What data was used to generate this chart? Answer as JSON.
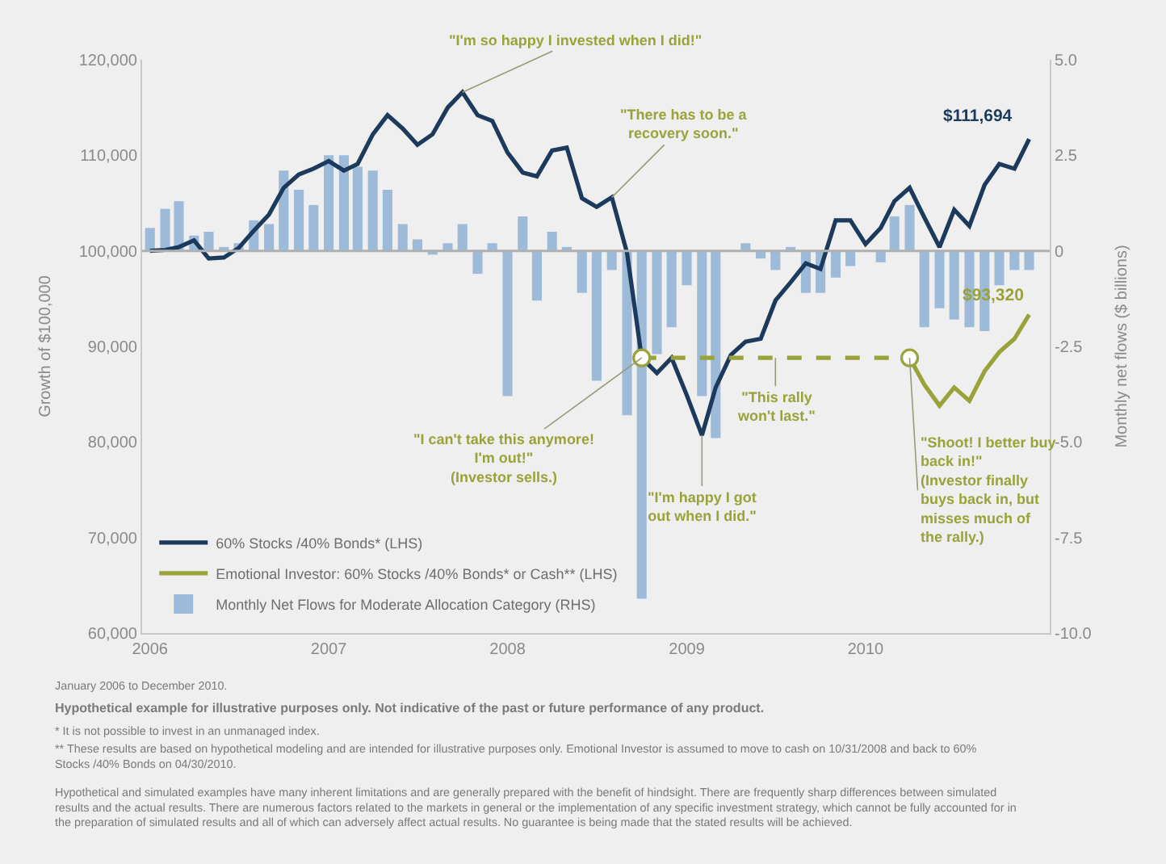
{
  "chart_data": {
    "type": "line",
    "x": [
      "2006-01",
      "2006-02",
      "2006-03",
      "2006-04",
      "2006-05",
      "2006-06",
      "2006-07",
      "2006-08",
      "2006-09",
      "2006-10",
      "2006-11",
      "2006-12",
      "2007-01",
      "2007-02",
      "2007-03",
      "2007-04",
      "2007-05",
      "2007-06",
      "2007-07",
      "2007-08",
      "2007-09",
      "2007-10",
      "2007-11",
      "2007-12",
      "2008-01",
      "2008-02",
      "2008-03",
      "2008-04",
      "2008-05",
      "2008-06",
      "2008-07",
      "2008-08",
      "2008-09",
      "2008-10",
      "2008-11",
      "2008-12",
      "2009-01",
      "2009-02",
      "2009-03",
      "2009-04",
      "2009-05",
      "2009-06",
      "2009-07",
      "2009-08",
      "2009-09",
      "2009-10",
      "2009-11",
      "2009-12",
      "2010-01",
      "2010-02",
      "2010-03",
      "2010-04",
      "2010-05",
      "2010-06",
      "2010-07",
      "2010-08",
      "2010-09",
      "2010-10",
      "2010-11",
      "2010-12"
    ],
    "series": [
      {
        "name": "Monthly Net Flows for Moderate Allocation Category (RHS)",
        "type": "bar",
        "axis": "y2",
        "color": "#9dbbd9",
        "values": [
          0.6,
          1.1,
          1.3,
          0.4,
          0.5,
          0.1,
          0.2,
          0.8,
          0.7,
          2.1,
          1.6,
          1.2,
          2.5,
          2.5,
          2.2,
          2.1,
          1.6,
          0.7,
          0.3,
          -0.1,
          0.2,
          0.7,
          -0.6,
          0.2,
          -3.8,
          0.9,
          -1.3,
          0.5,
          0.1,
          -1.1,
          -3.4,
          -0.5,
          -4.3,
          -9.1,
          -2.7,
          -2.0,
          -0.9,
          -3.8,
          -4.9,
          0,
          0.2,
          -0.2,
          -0.5,
          0.1,
          -1.1,
          -1.1,
          -0.7,
          -0.4,
          0,
          -0.3,
          0.9,
          1.2,
          -2.0,
          -1.5,
          -1.8,
          -2.0,
          -2.1,
          -0.9,
          -0.5,
          -0.5
        ]
      },
      {
        "name": "60% Stocks /40% Bonds* (LHS)",
        "color": "#1b3a5c",
        "values": [
          100000,
          100100,
          100400,
          101100,
          99200,
          99300,
          100300,
          102100,
          103800,
          106600,
          108000,
          108600,
          109400,
          108400,
          109100,
          112200,
          114200,
          112800,
          111100,
          112200,
          115000,
          116600,
          114200,
          113600,
          110300,
          108200,
          107800,
          110500,
          110800,
          105500,
          104600,
          105600,
          99800,
          88800,
          87200,
          88800,
          84900,
          80700,
          85700,
          89100,
          90500,
          90800,
          94800,
          96700,
          98700,
          98100,
          103200,
          103200,
          100700,
          102400,
          105200,
          106600,
          103500,
          100400,
          104300,
          102600,
          106900,
          109100,
          108600,
          111694
        ]
      },
      {
        "name": "Emotional Investor: 60% Stocks /40% Bonds* or Cash** (LHS)",
        "type": "line",
        "color": "#9aa33a",
        "x": [
          "2010-04",
          "2010-05",
          "2010-06",
          "2010-07",
          "2010-08",
          "2010-09",
          "2010-10",
          "2010-11",
          "2010-12"
        ],
        "values": [
          88800,
          86000,
          83800,
          85700,
          84300,
          87400,
          89400,
          90800,
          93320
        ]
      },
      {
        "color": "#9aa33a",
        "line_style": "dashed",
        "marker": "circle",
        "x": [
          "2008-10",
          "2010-04"
        ],
        "values": [
          88800,
          88800
        ]
      }
    ],
    "ylabel": "Growth of $100,000",
    "y2label": "Monthly net flows ($ billions)",
    "xlim": [
      "2005-12-16",
      "2011-01-12"
    ],
    "xticks": [
      {
        "value": "2006-01",
        "label": "2006"
      },
      {
        "value": "2007-01",
        "label": "2007"
      },
      {
        "value": "2008-01",
        "label": "2008"
      },
      {
        "value": "2009-01",
        "label": "2009"
      },
      {
        "value": "2010-01",
        "label": "2010"
      }
    ],
    "ylim": [
      60000,
      120000
    ],
    "yticks": [
      {
        "value": 60000,
        "label": "60,000"
      },
      {
        "value": 70000,
        "label": "70,000"
      },
      {
        "value": 80000,
        "label": "80,000"
      },
      {
        "value": 90000,
        "label": "90,000"
      },
      {
        "value": 100000,
        "label": "100,000"
      },
      {
        "value": 110000,
        "label": "110,000"
      },
      {
        "value": 120000,
        "label": "120,000"
      }
    ],
    "y2lim": [
      -10,
      5
    ],
    "y2ticks": [
      {
        "value": 5,
        "label": "5.0"
      },
      {
        "value": 2.5,
        "label": "2.5"
      },
      0,
      {
        "value": -2.5,
        "label": "-2.5"
      },
      {
        "value": -5,
        "label": "-5.0"
      },
      {
        "value": -7.5,
        "label": "-7.5"
      },
      {
        "value": -10,
        "label": "-10.0"
      }
    ],
    "grid": false,
    "ref_lines": [
      {
        "axis": "y2",
        "value": 0,
        "color": "#b0b0b0"
      }
    ],
    "legend": "bottom left",
    "annotations": [
      {
        "text": "\"I'm so happy I invested when I did!\"",
        "x": "2007-10",
        "y": 116600
      },
      {
        "text": "\"There has to be a\nrecovery soon.\"",
        "x": "2008-08",
        "y": 105600
      },
      {
        "text": "\"I can't take this anymore!\nI'm out!\"\n(Investor sells.)",
        "x": "2008-10",
        "y": 88800
      },
      {
        "text": "\"I'm happy I got\nout when I did.\"",
        "x": "2009-02",
        "y": 80700
      },
      {
        "text": "\"This rally\nwon't last.\"",
        "x": "2009-07",
        "y": 88800
      },
      {
        "text": "\"Shoot! I better buy\nback in!\"\n(Investor finally\nbuys back in, but\nmisses much of\nthe rally.)",
        "x": "2010-04",
        "y": 88800
      },
      {
        "text": "$111,694",
        "x": "2010-12",
        "y": 111694
      },
      {
        "text": "$93,320",
        "x": "2010-12",
        "y": 93320
      },
      "January 2006 to December 2010.",
      "Hypothetical example for illustrative purposes only. Not indicative of the past or future performance of any product.",
      "* It is not possible to invest in an unmanaged index.",
      "** These results are based on hypothetical modeling and are intended for illustrative purposes only. Emotional Investor is assumed to move to cash on 10/31/2008 and back to 60%\nStocks /40% Bonds on 04/30/2010.",
      "Hypothetical and simulated examples have many inherent limitations and are generally prepared with the benefit of hindsight. There are frequently sharp differences between simulated\nresults and the actual results. There are numerous factors related to the markets in general or the implementation of any specific investment strategy, which cannot be fully accounted for in\nthe preparation of simulated results and all of which can adversely affect actual results. No guarantee is being made that the stated results will be achieved."
    ]
  }
}
